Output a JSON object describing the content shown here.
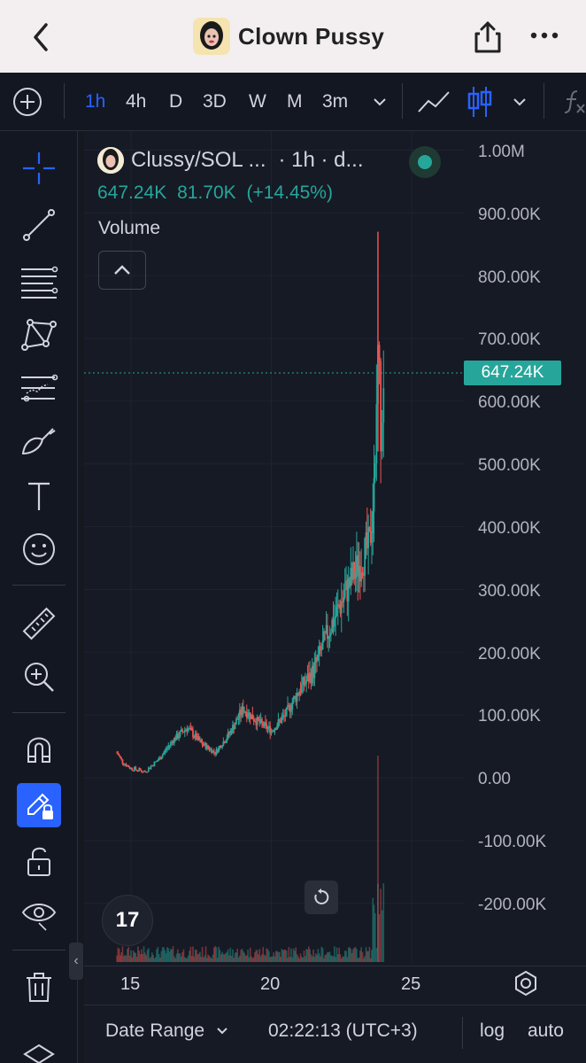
{
  "header": {
    "title": "Clown Pussy"
  },
  "toolbar": {
    "intervals": [
      "1h",
      "4h",
      "D",
      "3D",
      "W",
      "M",
      "3m"
    ],
    "active_interval": "1h"
  },
  "legend": {
    "symbol": "Clussy/SOL ...",
    "interval_info": "· 1h · d...",
    "last_price": "647.24K",
    "change": "81.70K",
    "change_pct": "(+14.45%)",
    "volume_label": "Volume"
  },
  "y_axis": {
    "labels": [
      "1.00M",
      "900.00K",
      "800.00K",
      "700.00K",
      "600.00K",
      "500.00K",
      "400.00K",
      "300.00K",
      "200.00K",
      "100.00K",
      "0.00",
      "-100.00K",
      "-200.00K"
    ],
    "current_price_tag": "647.24K"
  },
  "x_axis": {
    "labels": [
      "15",
      "20",
      "25"
    ]
  },
  "bottom_bar": {
    "date_range": "Date Range",
    "time": "02:22:13 (UTC+3)",
    "log": "log",
    "auto": "auto"
  },
  "tv_logo": "17",
  "colors": {
    "up": "#26a69a",
    "down": "#ef5350",
    "accent": "#2962ff",
    "background": "#161a25"
  },
  "chart_data": {
    "type": "candlestick",
    "ylim": [
      -250000,
      1000000
    ],
    "close_series": [
      {
        "day": 14.5,
        "price": 40000
      },
      {
        "day": 14.7,
        "price": 25000
      },
      {
        "day": 15.0,
        "price": 15000
      },
      {
        "day": 15.5,
        "price": 10000
      },
      {
        "day": 16.0,
        "price": 30000
      },
      {
        "day": 16.5,
        "price": 60000
      },
      {
        "day": 17.0,
        "price": 80000
      },
      {
        "day": 17.5,
        "price": 55000
      },
      {
        "day": 18.0,
        "price": 40000
      },
      {
        "day": 18.5,
        "price": 70000
      },
      {
        "day": 19.0,
        "price": 110000
      },
      {
        "day": 19.5,
        "price": 90000
      },
      {
        "day": 20.0,
        "price": 75000
      },
      {
        "day": 20.5,
        "price": 100000
      },
      {
        "day": 21.0,
        "price": 140000
      },
      {
        "day": 21.5,
        "price": 170000
      },
      {
        "day": 22.0,
        "price": 230000
      },
      {
        "day": 22.5,
        "price": 280000
      },
      {
        "day": 23.0,
        "price": 330000
      },
      {
        "day": 23.5,
        "price": 370000
      },
      {
        "day": 23.7,
        "price": 480000
      },
      {
        "day": 23.8,
        "price": 700000
      },
      {
        "day": 23.9,
        "price": 560000
      },
      {
        "day": 24.0,
        "price": 647240
      }
    ],
    "last_price": 647240,
    "high": 870000
  }
}
